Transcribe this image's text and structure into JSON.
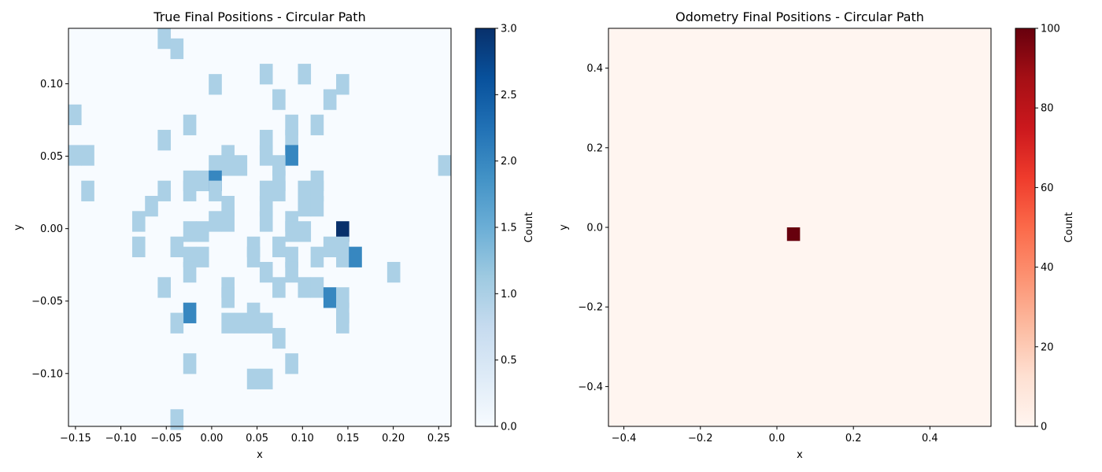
{
  "chart_data": [
    {
      "type": "heatmap",
      "title": "True Final Positions - Circular Path",
      "xlabel": "x",
      "ylabel": "y",
      "xlim": [
        -0.1577,
        0.2636
      ],
      "ylim": [
        -0.1365,
        0.1383
      ],
      "bin_size": 0.01404,
      "x_ticks": [
        -0.15,
        -0.1,
        -0.05,
        0.0,
        0.05,
        0.1,
        0.15,
        0.2,
        0.25
      ],
      "x_tick_labels": [
        "−0.15",
        "−0.10",
        "−0.05",
        "0.00",
        "0.05",
        "0.10",
        "0.15",
        "0.20",
        "0.25"
      ],
      "y_ticks": [
        -0.1,
        -0.05,
        0.0,
        0.05,
        0.1
      ],
      "y_tick_labels": [
        "−0.10",
        "−0.05",
        "0.00",
        "0.05",
        "0.10"
      ],
      "colormap": "Blues",
      "colormap_stops": [
        "#f7fbff",
        "#deebf7",
        "#c6dbef",
        "#9ecae1",
        "#6baed6",
        "#4292c6",
        "#2171b5",
        "#08519c",
        "#08306b"
      ],
      "colorbar": {
        "label": "Count",
        "range": [
          0,
          3
        ],
        "ticks": [
          0.0,
          0.5,
          1.0,
          1.5,
          2.0,
          2.5,
          3.0
        ],
        "tick_labels": [
          "0.0",
          "0.5",
          "1.0",
          "1.5",
          "2.0",
          "2.5",
          "3.0"
        ]
      },
      "cells": [
        {
          "x": -0.0524,
          "y": 0.1313,
          "count": 1
        },
        {
          "x": -0.0384,
          "y": 0.1243,
          "count": 1
        },
        {
          "x": 0.0599,
          "y": 0.1068,
          "count": 1
        },
        {
          "x": 0.102,
          "y": 0.1068,
          "count": 1
        },
        {
          "x": 0.0038,
          "y": 0.0997,
          "count": 1
        },
        {
          "x": 0.1441,
          "y": 0.0997,
          "count": 1
        },
        {
          "x": 0.0739,
          "y": 0.0892,
          "count": 1
        },
        {
          "x": 0.1301,
          "y": 0.0892,
          "count": 1
        },
        {
          "x": -0.1507,
          "y": 0.0787,
          "count": 1
        },
        {
          "x": -0.0243,
          "y": 0.0717,
          "count": 1
        },
        {
          "x": 0.088,
          "y": 0.0717,
          "count": 1
        },
        {
          "x": 0.116,
          "y": 0.0717,
          "count": 1
        },
        {
          "x": -0.0524,
          "y": 0.0612,
          "count": 1
        },
        {
          "x": 0.0599,
          "y": 0.0612,
          "count": 1
        },
        {
          "x": 0.088,
          "y": 0.0612,
          "count": 1
        },
        {
          "x": -0.1507,
          "y": 0.0507,
          "count": 1
        },
        {
          "x": -0.1366,
          "y": 0.0507,
          "count": 1
        },
        {
          "x": 0.0178,
          "y": 0.0507,
          "count": 1
        },
        {
          "x": 0.0599,
          "y": 0.0507,
          "count": 1
        },
        {
          "x": 0.088,
          "y": 0.0507,
          "count": 2
        },
        {
          "x": 0.0038,
          "y": 0.0437,
          "count": 1
        },
        {
          "x": 0.0178,
          "y": 0.0437,
          "count": 1
        },
        {
          "x": 0.0318,
          "y": 0.0437,
          "count": 1
        },
        {
          "x": 0.0739,
          "y": 0.0437,
          "count": 1
        },
        {
          "x": 0.2564,
          "y": 0.0437,
          "count": 1
        },
        {
          "x": -0.0243,
          "y": 0.0331,
          "count": 1
        },
        {
          "x": -0.0103,
          "y": 0.0331,
          "count": 1
        },
        {
          "x": 0.0038,
          "y": 0.0331,
          "count": 2
        },
        {
          "x": 0.0739,
          "y": 0.0331,
          "count": 1
        },
        {
          "x": 0.116,
          "y": 0.0331,
          "count": 1
        },
        {
          "x": -0.1366,
          "y": 0.0261,
          "count": 1
        },
        {
          "x": -0.0524,
          "y": 0.0261,
          "count": 1
        },
        {
          "x": -0.0243,
          "y": 0.0261,
          "count": 1
        },
        {
          "x": 0.0038,
          "y": 0.0261,
          "count": 1
        },
        {
          "x": 0.0599,
          "y": 0.0261,
          "count": 1
        },
        {
          "x": 0.0739,
          "y": 0.0261,
          "count": 1
        },
        {
          "x": 0.102,
          "y": 0.0261,
          "count": 1
        },
        {
          "x": 0.116,
          "y": 0.0261,
          "count": 1
        },
        {
          "x": -0.0664,
          "y": 0.0156,
          "count": 1
        },
        {
          "x": 0.0178,
          "y": 0.0156,
          "count": 1
        },
        {
          "x": 0.0599,
          "y": 0.0156,
          "count": 1
        },
        {
          "x": 0.102,
          "y": 0.0156,
          "count": 1
        },
        {
          "x": 0.116,
          "y": 0.0156,
          "count": 1
        },
        {
          "x": -0.0805,
          "y": 0.0051,
          "count": 1
        },
        {
          "x": 0.0038,
          "y": 0.0051,
          "count": 1
        },
        {
          "x": 0.0178,
          "y": 0.0051,
          "count": 1
        },
        {
          "x": 0.0599,
          "y": 0.0051,
          "count": 1
        },
        {
          "x": 0.088,
          "y": 0.0051,
          "count": 1
        },
        {
          "x": -0.0243,
          "y": -0.0019,
          "count": 1
        },
        {
          "x": -0.0103,
          "y": -0.0019,
          "count": 1
        },
        {
          "x": 0.088,
          "y": -0.0019,
          "count": 1
        },
        {
          "x": 0.102,
          "y": -0.0019,
          "count": 1
        },
        {
          "x": 0.1441,
          "y": -0.0019,
          "count": 3
        },
        {
          "x": -0.0805,
          "y": -0.0125,
          "count": 1
        },
        {
          "x": -0.0384,
          "y": -0.0125,
          "count": 1
        },
        {
          "x": 0.0459,
          "y": -0.0125,
          "count": 1
        },
        {
          "x": 0.0739,
          "y": -0.0125,
          "count": 1
        },
        {
          "x": 0.1301,
          "y": -0.0125,
          "count": 1
        },
        {
          "x": 0.1441,
          "y": -0.0125,
          "count": 1
        },
        {
          "x": -0.0243,
          "y": -0.0195,
          "count": 1
        },
        {
          "x": -0.0103,
          "y": -0.0195,
          "count": 1
        },
        {
          "x": 0.0459,
          "y": -0.0195,
          "count": 1
        },
        {
          "x": 0.088,
          "y": -0.0195,
          "count": 1
        },
        {
          "x": 0.116,
          "y": -0.0195,
          "count": 1
        },
        {
          "x": 0.1441,
          "y": -0.0195,
          "count": 1
        },
        {
          "x": 0.1581,
          "y": -0.0195,
          "count": 2
        },
        {
          "x": -0.0243,
          "y": -0.03,
          "count": 1
        },
        {
          "x": 0.0599,
          "y": -0.03,
          "count": 1
        },
        {
          "x": 0.088,
          "y": -0.03,
          "count": 1
        },
        {
          "x": 0.2003,
          "y": -0.03,
          "count": 1
        },
        {
          "x": -0.0524,
          "y": -0.0405,
          "count": 1
        },
        {
          "x": 0.0178,
          "y": -0.0405,
          "count": 1
        },
        {
          "x": 0.0739,
          "y": -0.0405,
          "count": 1
        },
        {
          "x": 0.102,
          "y": -0.0405,
          "count": 1
        },
        {
          "x": 0.116,
          "y": -0.0405,
          "count": 1
        },
        {
          "x": 0.0178,
          "y": -0.0475,
          "count": 1
        },
        {
          "x": 0.1301,
          "y": -0.0475,
          "count": 2
        },
        {
          "x": 0.1441,
          "y": -0.0475,
          "count": 1
        },
        {
          "x": -0.0243,
          "y": -0.0581,
          "count": 2
        },
        {
          "x": 0.0459,
          "y": -0.0581,
          "count": 1
        },
        {
          "x": 0.1441,
          "y": -0.0581,
          "count": 1
        },
        {
          "x": -0.0384,
          "y": -0.0651,
          "count": 1
        },
        {
          "x": 0.0178,
          "y": -0.0651,
          "count": 1
        },
        {
          "x": 0.0318,
          "y": -0.0651,
          "count": 1
        },
        {
          "x": 0.0459,
          "y": -0.0651,
          "count": 1
        },
        {
          "x": 0.0599,
          "y": -0.0651,
          "count": 1
        },
        {
          "x": 0.1441,
          "y": -0.0651,
          "count": 1
        },
        {
          "x": 0.0739,
          "y": -0.0756,
          "count": 1
        },
        {
          "x": -0.0243,
          "y": -0.0931,
          "count": 1
        },
        {
          "x": 0.088,
          "y": -0.0931,
          "count": 1
        },
        {
          "x": 0.0459,
          "y": -0.1037,
          "count": 1
        },
        {
          "x": 0.0599,
          "y": -0.1037,
          "count": 1
        },
        {
          "x": -0.0384,
          "y": -0.1317,
          "count": 1
        }
      ]
    },
    {
      "type": "heatmap",
      "title": "Odometry Final Positions - Circular Path",
      "xlabel": "x",
      "ylabel": "y",
      "xlim": [
        -0.4403,
        0.5597
      ],
      "ylim": [
        -0.5,
        0.5
      ],
      "bin_size": 0.0333,
      "x_ticks": [
        -0.4,
        -0.2,
        0.0,
        0.2,
        0.4
      ],
      "x_tick_labels": [
        "−0.4",
        "−0.2",
        "0.0",
        "0.2",
        "0.4"
      ],
      "y_ticks": [
        -0.4,
        -0.2,
        0.0,
        0.2,
        0.4
      ],
      "y_tick_labels": [
        "−0.4",
        "−0.2",
        "0.0",
        "0.2",
        "0.4"
      ],
      "colormap": "Reds",
      "colormap_stops": [
        "#fff5f0",
        "#fee0d2",
        "#fcbba1",
        "#fc9272",
        "#fb6a4a",
        "#ef3b2c",
        "#cb181d",
        "#a50f15",
        "#67000d"
      ],
      "colorbar": {
        "label": "Count",
        "range": [
          0,
          100
        ],
        "ticks": [
          0,
          20,
          40,
          60,
          80,
          100
        ],
        "tick_labels": [
          "0",
          "20",
          "40",
          "60",
          "80",
          "100"
        ]
      },
      "cells": [
        {
          "x": 0.043,
          "y": -0.0167,
          "count": 100
        }
      ]
    }
  ]
}
